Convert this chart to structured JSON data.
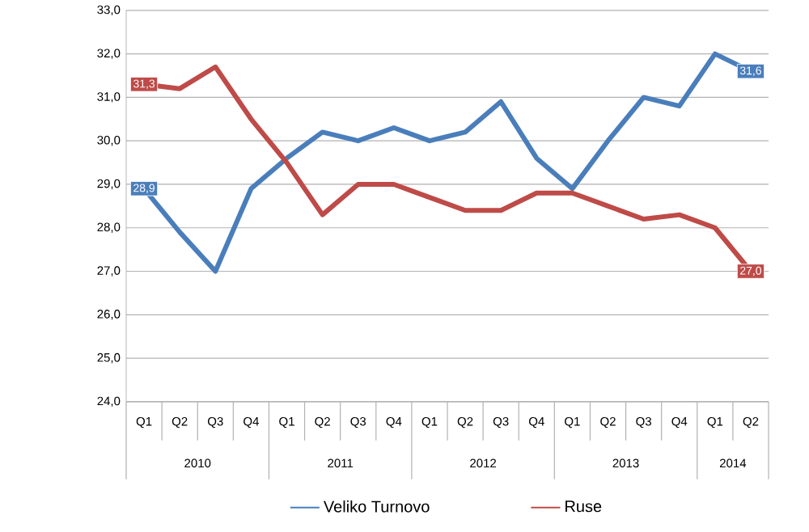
{
  "chart_data": {
    "type": "line",
    "categories": [
      "Q1",
      "Q2",
      "Q3",
      "Q4",
      "Q1",
      "Q2",
      "Q3",
      "Q4",
      "Q1",
      "Q2",
      "Q3",
      "Q4",
      "Q1",
      "Q2",
      "Q3",
      "Q4",
      "Q1",
      "Q2"
    ],
    "annotations": [
      "2010",
      "2011",
      "2012",
      "2013",
      "2014"
    ],
    "series": [
      {
        "name": "Veliko Turnovo",
        "color": "#4a7ebb",
        "values": [
          28.9,
          27.9,
          27.0,
          28.9,
          29.6,
          30.2,
          30.0,
          30.3,
          30.0,
          30.2,
          30.9,
          29.6,
          28.9,
          30.0,
          31.0,
          30.8,
          32.0,
          31.6
        ],
        "value_labels": [
          "28,9",
          null,
          null,
          null,
          null,
          null,
          null,
          null,
          null,
          null,
          null,
          null,
          null,
          null,
          null,
          null,
          null,
          "31,6"
        ]
      },
      {
        "name": "Ruse",
        "color": "#be4b48",
        "values": [
          31.3,
          31.2,
          31.7,
          30.5,
          29.5,
          28.3,
          29.0,
          29.0,
          28.7,
          28.4,
          28.4,
          28.8,
          28.8,
          28.5,
          28.2,
          28.3,
          28.0,
          27.0
        ],
        "value_labels": [
          "31,3",
          null,
          null,
          null,
          null,
          null,
          null,
          null,
          null,
          null,
          null,
          null,
          null,
          null,
          null,
          null,
          null,
          "27,0"
        ]
      }
    ],
    "ylim": [
      24,
      33
    ],
    "yticks": [
      {
        "value": 24,
        "label": "24,0"
      },
      {
        "value": 25,
        "label": "25,0"
      },
      {
        "value": 26,
        "label": "26,0"
      },
      {
        "value": 27,
        "label": "27,0"
      },
      {
        "value": 28,
        "label": "28,0"
      },
      {
        "value": 29,
        "label": "29,0"
      },
      {
        "value": 30,
        "label": "30,0"
      },
      {
        "value": 31,
        "label": "31,0"
      },
      {
        "value": 32,
        "label": "32,0"
      },
      {
        "value": 33,
        "label": "33,0"
      }
    ],
    "grid": "y",
    "legend": "bottom",
    "marker": "none",
    "line_style": "solid"
  }
}
